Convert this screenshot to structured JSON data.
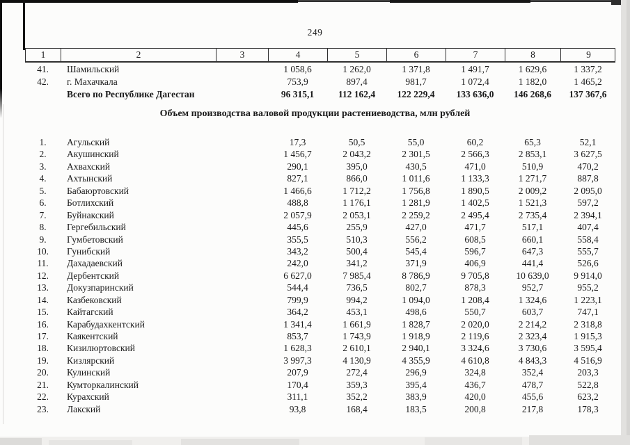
{
  "page": {
    "number": "249"
  },
  "upper_table": {
    "column_headers": [
      "1",
      "2",
      "3",
      "4",
      "5",
      "6",
      "7",
      "8",
      "9"
    ],
    "rows": [
      {
        "num": "41.",
        "name": "Шамильский",
        "values": [
          "1 058,6",
          "1 262,0",
          "1 371,8",
          "1 491,7",
          "1 629,6",
          "1 337,2"
        ]
      },
      {
        "num": "42.",
        "name": "г. Махачкала",
        "values": [
          "753,9",
          "897,4",
          "981,7",
          "1 072,4",
          "1 182,0",
          "1 465,2"
        ]
      }
    ],
    "total_row": {
      "label": "Всего по Республике Дагестан",
      "values": [
        "96 315,1",
        "112 162,4",
        "122 229,4",
        "133 636,0",
        "146 268,6",
        "137 367,6"
      ]
    }
  },
  "section_title": "Объем производства валовой продукции растениеводства, млн рублей",
  "list_table": {
    "rows": [
      {
        "num": "1.",
        "name": "Агульский",
        "values": [
          "17,3",
          "50,5",
          "55,0",
          "60,2",
          "65,3",
          "52,1"
        ]
      },
      {
        "num": "2.",
        "name": "Акушинский",
        "values": [
          "1 456,7",
          "2 043,2",
          "2 301,5",
          "2 566,3",
          "2 853,1",
          "3 627,5"
        ]
      },
      {
        "num": "3.",
        "name": "Ахвахский",
        "values": [
          "290,1",
          "395,0",
          "430,5",
          "471,0",
          "510,9",
          "470,2"
        ]
      },
      {
        "num": "4.",
        "name": "Ахтынский",
        "values": [
          "827,1",
          "866,0",
          "1 011,6",
          "1 133,3",
          "1 271,7",
          "887,8"
        ]
      },
      {
        "num": "5.",
        "name": "Бабаюртовский",
        "values": [
          "1 466,6",
          "1 712,2",
          "1 756,8",
          "1 890,5",
          "2 009,2",
          "2 095,0"
        ]
      },
      {
        "num": "6.",
        "name": "Ботлихский",
        "values": [
          "488,8",
          "1 176,1",
          "1 281,9",
          "1 402,5",
          "1 521,3",
          "597,2"
        ]
      },
      {
        "num": "7.",
        "name": "Буйнакский",
        "values": [
          "2 057,9",
          "2 053,1",
          "2 259,2",
          "2 495,4",
          "2 735,4",
          "2 394,1"
        ]
      },
      {
        "num": "8.",
        "name": "Гергебильский",
        "values": [
          "445,6",
          "255,9",
          "427,0",
          "471,7",
          "517,1",
          "407,4"
        ]
      },
      {
        "num": "9.",
        "name": "Гумбетовский",
        "values": [
          "355,5",
          "510,3",
          "556,2",
          "608,5",
          "660,1",
          "558,4"
        ]
      },
      {
        "num": "10.",
        "name": "Гунибский",
        "values": [
          "343,2",
          "500,4",
          "545,4",
          "596,7",
          "647,3",
          "555,7"
        ]
      },
      {
        "num": "11.",
        "name": "Дахадаевский",
        "values": [
          "242,0",
          "341,2",
          "371,9",
          "406,9",
          "441,4",
          "526,6"
        ]
      },
      {
        "num": "12.",
        "name": "Дербентский",
        "values": [
          "6 627,0",
          "7 985,4",
          "8 786,9",
          "9 705,8",
          "10 639,0",
          "9 914,0"
        ]
      },
      {
        "num": "13.",
        "name": "Докузпаринский",
        "values": [
          "544,4",
          "736,5",
          "802,7",
          "878,3",
          "952,7",
          "955,2"
        ]
      },
      {
        "num": "14.",
        "name": "Казбековский",
        "values": [
          "799,9",
          "994,2",
          "1 094,0",
          "1 208,4",
          "1 324,6",
          "1 223,1"
        ]
      },
      {
        "num": "15.",
        "name": "Кайтагский",
        "values": [
          "364,2",
          "453,1",
          "498,6",
          "550,7",
          "603,7",
          "747,1"
        ]
      },
      {
        "num": "16.",
        "name": "Карабудахкентский",
        "values": [
          "1 341,4",
          "1 661,9",
          "1 828,7",
          "2 020,0",
          "2 214,2",
          "2 318,8"
        ]
      },
      {
        "num": "17.",
        "name": "Каякентский",
        "values": [
          "853,7",
          "1 743,9",
          "1 918,9",
          "2 119,6",
          "2 323,4",
          "1 915,3"
        ]
      },
      {
        "num": "18.",
        "name": "Кизилюртовский",
        "values": [
          "1 628,3",
          "2 610,1",
          "2 940,1",
          "3 324,6",
          "3 730,6",
          "3 595,4"
        ]
      },
      {
        "num": "19.",
        "name": "Кизлярский",
        "values": [
          "3 997,3",
          "4 130,9",
          "4 355,9",
          "4 610,8",
          "4 843,3",
          "4 516,9"
        ]
      },
      {
        "num": "20.",
        "name": "Кулинский",
        "values": [
          "207,9",
          "272,4",
          "296,9",
          "324,8",
          "352,4",
          "203,3"
        ]
      },
      {
        "num": "21.",
        "name": "Кумторкалинский",
        "values": [
          "170,4",
          "359,3",
          "395,4",
          "436,7",
          "478,7",
          "522,8"
        ]
      },
      {
        "num": "22.",
        "name": "Курахский",
        "values": [
          "311,1",
          "352,2",
          "383,9",
          "420,0",
          "455,6",
          "623,2"
        ]
      },
      {
        "num": "23.",
        "name": "Лакский",
        "values": [
          "93,8",
          "168,4",
          "183,5",
          "200,8",
          "217,8",
          "178,3"
        ]
      }
    ]
  },
  "colors": {
    "text": "#1b1b1b",
    "table_border": "#303030",
    "page_background": "#fcfcfb"
  }
}
